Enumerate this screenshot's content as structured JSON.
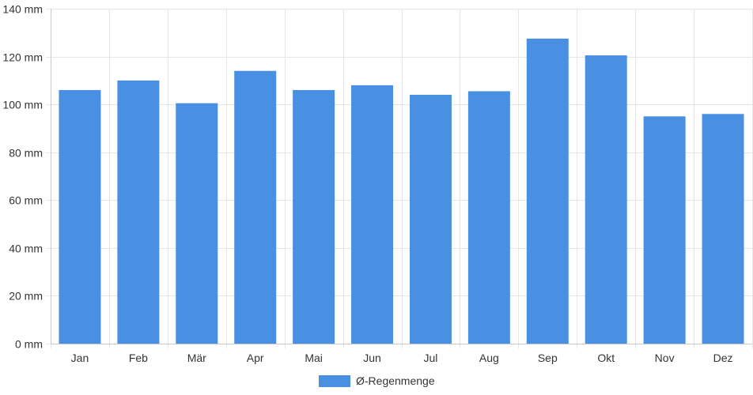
{
  "chart_data": {
    "type": "bar",
    "title": "",
    "xlabel": "",
    "ylabel": "",
    "categories": [
      "Jan",
      "Feb",
      "Mär",
      "Apr",
      "Mai",
      "Jun",
      "Jul",
      "Aug",
      "Sep",
      "Okt",
      "Nov",
      "Dez"
    ],
    "series": [
      {
        "name": "Ø-Regenmenge",
        "values": [
          106,
          110,
          100.5,
          114,
          106,
          108,
          104,
          105.5,
          127.5,
          120.5,
          95,
          96
        ],
        "color": "#4a90e2"
      }
    ],
    "ylim": [
      0,
      140
    ],
    "yticks": [
      0,
      20,
      40,
      60,
      80,
      100,
      120,
      140
    ],
    "y_unit": "mm",
    "grid": true,
    "legend_position": "bottom-center"
  }
}
